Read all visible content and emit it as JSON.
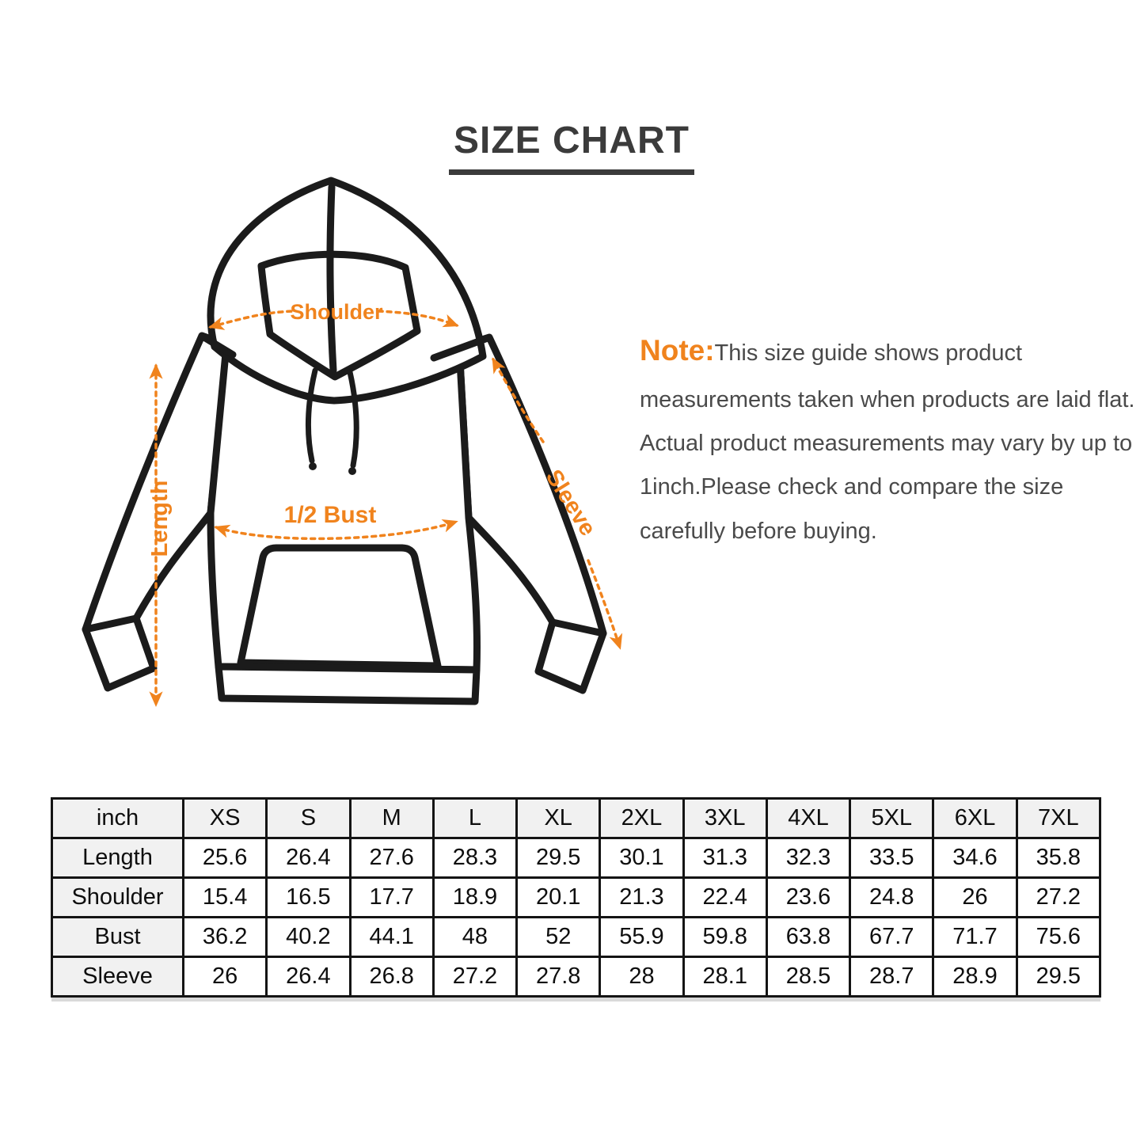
{
  "title": "SIZE CHART",
  "note": {
    "label": "Note:",
    "text": "This size guide shows product measurements taken when products are laid flat. Actual product measurements may vary by up to 1inch.Please check and compare the size carefully before buying."
  },
  "diagram": {
    "labels": {
      "shoulder": "Shoulder",
      "length": "Length",
      "bust": "1/2 Bust",
      "sleeve": "Sleeve"
    }
  },
  "colors": {
    "accent": "#f0831d",
    "ink": "#1b1b1b",
    "title": "#3b3b3b",
    "text": "#4a4a4a",
    "table_border": "#141414",
    "table_header_bg": "#f1f1f1"
  },
  "table": {
    "unit_header": "inch",
    "size_headers": [
      "XS",
      "S",
      "M",
      "L",
      "XL",
      "2XL",
      "3XL",
      "4XL",
      "5XL",
      "6XL",
      "7XL"
    ],
    "rows": [
      {
        "label": "Length",
        "values": [
          "25.6",
          "26.4",
          "27.6",
          "28.3",
          "29.5",
          "30.1",
          "31.3",
          "32.3",
          "33.5",
          "34.6",
          "35.8"
        ]
      },
      {
        "label": "Shoulder",
        "values": [
          "15.4",
          "16.5",
          "17.7",
          "18.9",
          "20.1",
          "21.3",
          "22.4",
          "23.6",
          "24.8",
          "26",
          "27.2"
        ]
      },
      {
        "label": "Bust",
        "values": [
          "36.2",
          "40.2",
          "44.1",
          "48",
          "52",
          "55.9",
          "59.8",
          "63.8",
          "67.7",
          "71.7",
          "75.6"
        ]
      },
      {
        "label": "Sleeve",
        "values": [
          "26",
          "26.4",
          "26.8",
          "27.2",
          "27.8",
          "28",
          "28.1",
          "28.5",
          "28.7",
          "28.9",
          "29.5"
        ]
      }
    ]
  }
}
